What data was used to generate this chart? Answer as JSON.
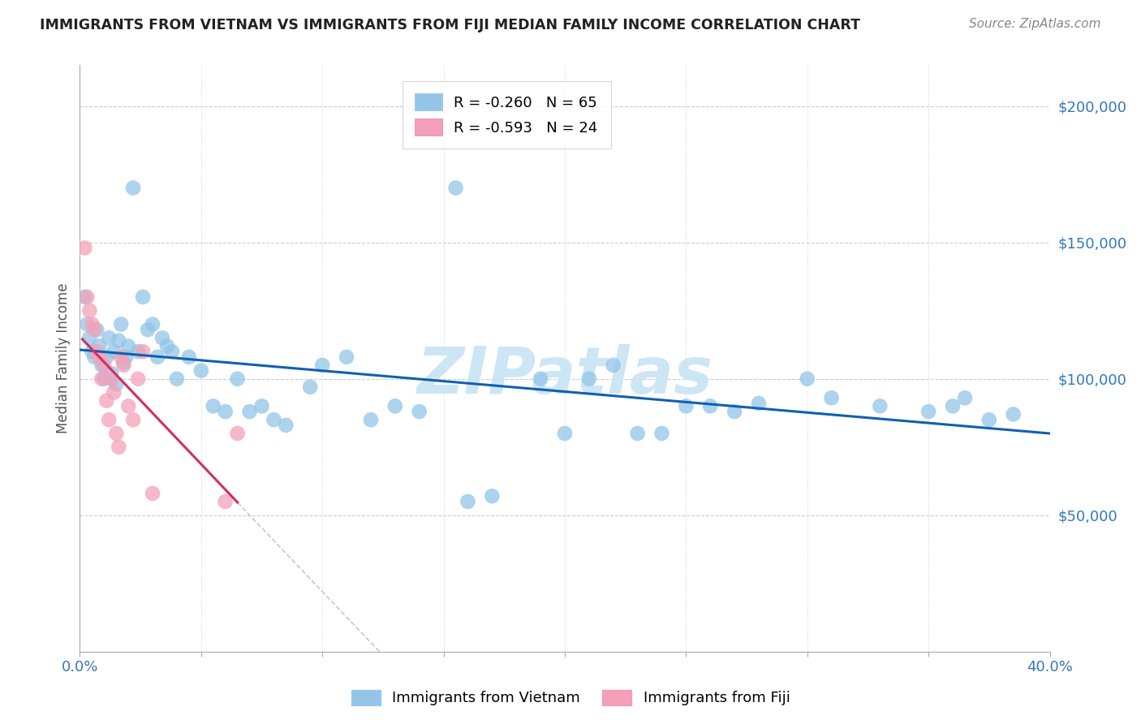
{
  "title": "IMMIGRANTS FROM VIETNAM VS IMMIGRANTS FROM FIJI MEDIAN FAMILY INCOME CORRELATION CHART",
  "source": "Source: ZipAtlas.com",
  "ylabel": "Median Family Income",
  "xlim": [
    0.0,
    0.4
  ],
  "ylim": [
    0,
    215000
  ],
  "color_vietnam": "#92C5E8",
  "color_fiji": "#F5A0B8",
  "line_vietnam": "#1060B0",
  "line_fiji": "#D03060",
  "line_fiji_ext_color": "#C8C8C8",
  "legend_r_vn": "R = -0.260",
  "legend_n_vn": "N = 65",
  "legend_r_fj": "R = -0.593",
  "legend_n_fj": "N = 24",
  "watermark": "ZIPatlas",
  "vietnam_x": [
    0.002,
    0.003,
    0.004,
    0.005,
    0.006,
    0.007,
    0.008,
    0.009,
    0.01,
    0.011,
    0.012,
    0.013,
    0.014,
    0.015,
    0.016,
    0.017,
    0.018,
    0.019,
    0.02,
    0.022,
    0.024,
    0.026,
    0.028,
    0.03,
    0.032,
    0.034,
    0.036,
    0.038,
    0.04,
    0.045,
    0.05,
    0.055,
    0.06,
    0.065,
    0.07,
    0.075,
    0.08,
    0.085,
    0.095,
    0.1,
    0.11,
    0.12,
    0.13,
    0.14,
    0.155,
    0.16,
    0.17,
    0.19,
    0.2,
    0.21,
    0.22,
    0.23,
    0.24,
    0.25,
    0.26,
    0.27,
    0.28,
    0.3,
    0.31,
    0.33,
    0.35,
    0.36,
    0.365,
    0.375,
    0.385
  ],
  "vietnam_y": [
    130000,
    120000,
    115000,
    110000,
    108000,
    118000,
    112000,
    105000,
    100000,
    108000,
    115000,
    102000,
    110000,
    98000,
    114000,
    120000,
    106000,
    108000,
    112000,
    170000,
    110000,
    130000,
    118000,
    120000,
    108000,
    115000,
    112000,
    110000,
    100000,
    108000,
    103000,
    90000,
    88000,
    100000,
    88000,
    90000,
    85000,
    83000,
    97000,
    105000,
    108000,
    85000,
    90000,
    88000,
    170000,
    55000,
    57000,
    100000,
    80000,
    100000,
    105000,
    80000,
    80000,
    90000,
    90000,
    88000,
    91000,
    100000,
    93000,
    90000,
    88000,
    90000,
    93000,
    85000,
    87000
  ],
  "fiji_x": [
    0.002,
    0.003,
    0.004,
    0.005,
    0.006,
    0.007,
    0.008,
    0.009,
    0.01,
    0.011,
    0.012,
    0.013,
    0.014,
    0.015,
    0.016,
    0.017,
    0.018,
    0.02,
    0.022,
    0.024,
    0.026,
    0.03,
    0.06,
    0.065
  ],
  "fiji_y": [
    148000,
    130000,
    125000,
    120000,
    118000,
    110000,
    108000,
    100000,
    105000,
    92000,
    85000,
    100000,
    95000,
    80000,
    75000,
    108000,
    105000,
    90000,
    85000,
    100000,
    110000,
    58000,
    55000,
    80000
  ],
  "vn_line_x": [
    0.0,
    0.4
  ],
  "vn_line_y": [
    117000,
    82000
  ],
  "fj_line_x0": 0.001,
  "fj_line_x1": 0.013,
  "fj_line_ext_x1": 0.4,
  "fj_line_y0": 132000,
  "fj_line_y1": 68000
}
